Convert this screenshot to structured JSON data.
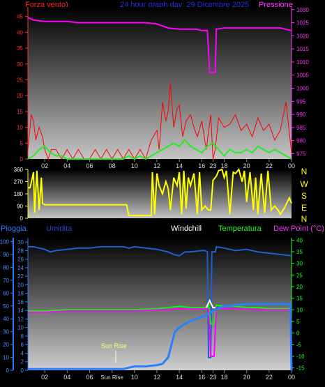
{
  "header": {
    "left_label": "Forza vento)",
    "center_label": "24 hour graph day: 29 Dicembre 2025",
    "right_label": "Pressione"
  },
  "colors": {
    "wind": "#ff0000",
    "gust": "#ff0000",
    "pressure": "#ff00ff",
    "direction": "#ffff00",
    "windchill": "#ffffff",
    "temperature": "#00ff00",
    "dewpoint": "#ff00ff",
    "humidity": "#1e5fd0",
    "rain": "#2a7fff",
    "axis_left": "#ff3333",
    "axis_right": "#ff33ff",
    "compass": "#ffff00"
  },
  "compass": {
    "labels": [
      "N",
      "W",
      "S",
      "E",
      "N"
    ]
  },
  "bottom_header": {
    "rain": "Pioggia",
    "humidity": "Umidita",
    "windchill": "Windchill",
    "temperature": "Temperatura",
    "dewpoint": "Dew Point (°C)"
  },
  "sunrise_label": "Sun Rise",
  "chart_data": [
    {
      "type": "line",
      "title": "24 hour graph day: 29 Dicembre 2025",
      "xlabel": "",
      "x_ticks": [
        "02",
        "04",
        "06",
        "08",
        "10",
        "12",
        "14",
        "16",
        "23",
        "18",
        "20",
        "22",
        "00"
      ],
      "y_left_label": "Forza vento)",
      "y_left_ticks": [
        0,
        5,
        10,
        15,
        20,
        25,
        30,
        35,
        40,
        45
      ],
      "y_left_lim": [
        0,
        48
      ],
      "y_right_label": "Pressione",
      "y_right_ticks": [
        975,
        980,
        985,
        990,
        995,
        1000,
        1005,
        1010,
        1015,
        1020,
        1025,
        1030
      ],
      "y_right_lim": [
        973,
        1031
      ],
      "x_range_hours": [
        0.5,
        24
      ],
      "series": [
        {
          "axis": "left",
          "x": [
            0.5,
            0.8,
            1.0,
            1.2,
            1.5,
            1.8,
            2.0,
            2.3,
            2.6,
            3.0,
            3.5,
            4.0,
            4.5,
            5.0,
            5.5,
            6.0,
            6.5,
            7.0,
            7.5,
            8.0,
            8.5,
            9.0,
            9.5,
            10.0,
            10.5,
            11.0,
            11.5,
            12.0,
            12.2,
            12.5,
            12.8,
            13.0,
            13.2,
            13.5,
            13.8,
            14.0,
            14.3,
            14.6,
            15.0,
            15.3,
            15.6,
            16.0,
            16.4,
            16.8,
            17.0,
            17.2,
            17.5,
            18.0,
            18.5,
            19.0,
            19.5,
            20.0,
            20.5,
            21.0,
            21.5,
            22.0,
            22.5,
            23.0,
            23.5,
            24.0
          ],
          "values": [
            3,
            14,
            12,
            6,
            10,
            7,
            3,
            0,
            3,
            3,
            0,
            3,
            0,
            3,
            0,
            0,
            3,
            0,
            3,
            0,
            3,
            0,
            3,
            0,
            3,
            0,
            6,
            9,
            3,
            18,
            12,
            15,
            24,
            10,
            16,
            17,
            7,
            12,
            14,
            10,
            7,
            12,
            3,
            14,
            0,
            3,
            13,
            10,
            11,
            14,
            9,
            11,
            7,
            13,
            9,
            11,
            6,
            9,
            18,
            2
          ]
        },
        {
          "axis": "left",
          "x": [
            0.5,
            1.0,
            1.5,
            2.0,
            2.5,
            3.0,
            3.5,
            4.0,
            6.0,
            8.0,
            9.0,
            9.5,
            10.0,
            10.5,
            11.0,
            11.5,
            12.0,
            12.5,
            13.0,
            13.5,
            14.0,
            14.5,
            15.0,
            15.5,
            16.0,
            16.5,
            17.0,
            17.5,
            18.0,
            18.5,
            19.0,
            19.5,
            20.0,
            20.5,
            21.0,
            21.5,
            22.0,
            22.5,
            23.0,
            23.5,
            24.0
          ],
          "values": [
            0,
            1,
            3,
            4,
            2,
            1,
            1,
            0,
            0,
            0,
            0,
            1,
            0,
            1,
            0,
            1,
            2,
            3,
            4,
            5,
            4,
            6,
            4,
            3,
            2,
            4,
            5,
            3,
            1,
            3,
            2,
            2,
            3,
            2,
            4,
            3,
            2,
            3,
            2,
            1,
            0
          ]
        },
        {
          "axis": "right",
          "x": [
            0.5,
            1.0,
            2.0,
            3.0,
            4.0,
            5.0,
            6.0,
            7.0,
            8.0,
            9.0,
            10.0,
            11.0,
            12.0,
            13.0,
            14.0,
            15.0,
            15.5,
            16.0,
            16.5,
            16.7,
            16.9,
            17.2,
            17.3,
            18.0,
            19.0,
            20.0,
            21.0,
            22.0,
            23.0,
            24.0
          ],
          "values": [
            1027,
            1026,
            1025.5,
            1025.5,
            1025.5,
            1025,
            1025,
            1025,
            1025,
            1025,
            1025,
            1025,
            1024.5,
            1023,
            1022.5,
            1022.5,
            1022.5,
            1022,
            1022,
            1006,
            1006,
            1006,
            1022.5,
            1023,
            1023,
            1023,
            1023,
            1023,
            1023,
            1022
          ]
        }
      ]
    },
    {
      "type": "line",
      "y_ticks": [
        0,
        90,
        180,
        270,
        360
      ],
      "y_lim": [
        0,
        360
      ],
      "x_range_hours": [
        0.5,
        24
      ],
      "series": [
        {
          "x": [
            0.5,
            0.7,
            1.0,
            1.1,
            1.3,
            1.5,
            1.7,
            1.8,
            2.0,
            3.0,
            5.0,
            7.0,
            9.0,
            9.3,
            9.5,
            10.0,
            11.0,
            11.5,
            11.6,
            11.8,
            12.0,
            12.2,
            12.5,
            12.8,
            13.0,
            13.2,
            13.5,
            13.8,
            14.0,
            14.2,
            14.4,
            14.6,
            14.8,
            15.0,
            15.3,
            15.6,
            15.8,
            16.0,
            16.3,
            16.6,
            16.8,
            17.0,
            17.3,
            17.5,
            17.8,
            18.0,
            18.2,
            18.5,
            18.8,
            19.0,
            19.3,
            19.6,
            19.8,
            20.0,
            20.3,
            20.6,
            20.8,
            21.0,
            21.3,
            21.6,
            21.9,
            22.2,
            22.5,
            22.8,
            23.0,
            23.4,
            23.8,
            24.0
          ],
          "values": [
            225,
            225,
            340,
            40,
            350,
            60,
            300,
            110,
            100,
            100,
            100,
            100,
            100,
            100,
            20,
            20,
            20,
            20,
            340,
            30,
            330,
            240,
            180,
            270,
            220,
            60,
            300,
            240,
            340,
            30,
            350,
            70,
            300,
            240,
            330,
            30,
            340,
            60,
            90,
            60,
            60,
            280,
            310,
            350,
            360,
            300,
            350,
            30,
            340,
            330,
            360,
            270,
            350,
            120,
            340,
            60,
            300,
            30,
            330,
            40,
            350,
            60,
            90,
            60,
            30,
            80,
            150,
            110
          ]
        }
      ]
    },
    {
      "type": "line",
      "x_ticks": [
        "02",
        "04",
        "06",
        "Sun Rise",
        "10",
        "12",
        "14",
        "16",
        "23",
        "18",
        "20",
        "22",
        "00"
      ],
      "y_left_ticks": [
        0,
        2,
        4,
        6,
        8,
        10,
        12,
        14,
        16,
        18,
        20,
        22,
        24,
        26,
        28,
        30
      ],
      "y_left_lim": [
        0,
        31
      ],
      "y_left2_ticks": [
        0,
        10,
        20,
        30,
        40,
        50,
        60,
        70,
        80,
        90,
        100
      ],
      "y_left2_lim": [
        0,
        103
      ],
      "y_right_ticks": [
        -15,
        -10,
        -5,
        0,
        5,
        10,
        15,
        20,
        25,
        30,
        35,
        40
      ],
      "y_right_lim": [
        -16,
        41
      ],
      "x_range_hours": [
        0.5,
        24
      ],
      "series": [
        {
          "name": "Umidita",
          "axis": "left2",
          "x": [
            0.5,
            1.0,
            2.0,
            2.5,
            3.0,
            4.0,
            5.0,
            6.0,
            7.0,
            8.0,
            9.0,
            9.5,
            10.0,
            11.0,
            12.0,
            13.0,
            13.5,
            14.0,
            14.5,
            15.0,
            16.0,
            16.3,
            16.5,
            16.6,
            16.8,
            16.9,
            17.0,
            17.2,
            17.3,
            18.0,
            19.0,
            20.0,
            21.0,
            22.0,
            23.0,
            24.0
          ],
          "values": [
            96,
            96,
            94,
            92,
            93,
            94,
            95,
            95,
            96,
            96,
            96,
            95,
            96,
            95,
            94,
            92,
            90,
            89,
            92,
            92,
            93,
            93,
            92,
            10,
            10,
            92,
            92,
            92,
            96,
            95,
            93,
            94,
            92,
            91,
            90,
            89
          ]
        },
        {
          "name": "Temperatura",
          "axis": "right",
          "x": [
            0.5,
            2.0,
            4.0,
            6.0,
            8.0,
            10.0,
            12.0,
            13.0,
            14.0,
            15.0,
            16.0,
            16.5,
            16.6,
            16.8,
            17.0,
            17.1,
            17.3,
            18.0,
            19.0,
            20.0,
            21.0,
            22.0,
            23.0,
            24.0
          ],
          "values": [
            9.5,
            9.5,
            10,
            10,
            10,
            10,
            10.5,
            11,
            11.5,
            11,
            11,
            11,
            12,
            4,
            4,
            4,
            12,
            11.5,
            11.5,
            11,
            11,
            10.5,
            10.5,
            10.5
          ]
        },
        {
          "name": "Dew Point",
          "axis": "right",
          "x": [
            0.5,
            2.0,
            4.0,
            6.0,
            8.0,
            10.0,
            12.0,
            13.0,
            14.0,
            15.0,
            16.0,
            16.5,
            16.6,
            16.8,
            17.0,
            17.1,
            17.3,
            18.0,
            19.0,
            20.0,
            21.0,
            22.0,
            23.0,
            24.0
          ],
          "values": [
            9,
            9,
            9.5,
            9.5,
            9.5,
            9.5,
            10,
            10,
            10.5,
            10.5,
            10.5,
            10.5,
            10,
            -10,
            -10,
            -10,
            11,
            10.5,
            10.5,
            10.5,
            10,
            10,
            10,
            10
          ]
        },
        {
          "name": "Windchill",
          "axis": "right",
          "x": [
            16.4,
            16.6,
            16.7,
            16.9,
            17.0,
            17.2
          ],
          "values": [
            11,
            13,
            14,
            12,
            11,
            11
          ]
        },
        {
          "name": "Pioggia",
          "axis": "left",
          "x": [
            0.5,
            2.0,
            4.0,
            6.0,
            8.0,
            9.0,
            9.5,
            10.0,
            11.0,
            12.0,
            12.5,
            13.0,
            13.3,
            13.6,
            14.0,
            14.3,
            14.6,
            15.0,
            15.5,
            16.0,
            16.5,
            17.0,
            18.0,
            20.0,
            22.0,
            23.0,
            23.5,
            23.9,
            24.0
          ],
          "values": [
            0.3,
            0.3,
            0.3,
            0.3,
            0.3,
            0.3,
            0.6,
            0.9,
            0.9,
            1.2,
            1.5,
            3,
            6,
            9,
            10,
            10.5,
            11,
            11.5,
            12,
            12.5,
            13,
            14,
            15,
            15.5,
            15.5,
            15.5,
            15.5,
            15.5,
            0
          ]
        }
      ]
    }
  ]
}
